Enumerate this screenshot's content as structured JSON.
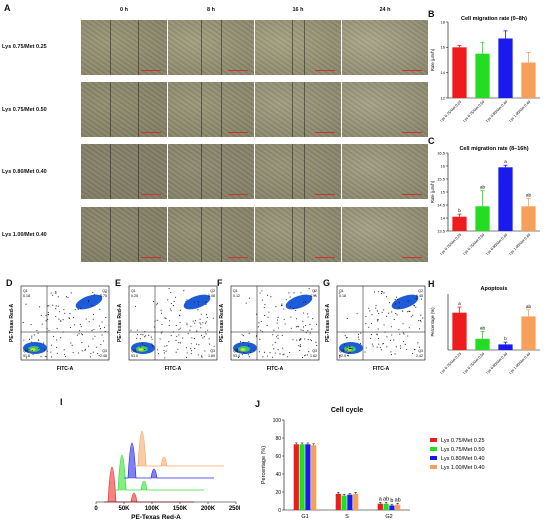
{
  "panels": {
    "A": {
      "letter": "A",
      "columns": [
        "0 h",
        "8 h",
        "16 h",
        "24 h"
      ],
      "rows": [
        "Lys 0.75/Met 0.25",
        "Lys 0.75/Met 0.50",
        "Lys 0.80/Met 0.40",
        "Lys 1.00/Met 0.40"
      ]
    },
    "B": {
      "letter": "B"
    },
    "C": {
      "letter": "C"
    },
    "D": {
      "letter": "D"
    },
    "E": {
      "letter": "E"
    },
    "F": {
      "letter": "F"
    },
    "G": {
      "letter": "G"
    },
    "H": {
      "letter": "H"
    },
    "I": {
      "letter": "I"
    },
    "J": {
      "letter": "J"
    }
  },
  "colors": {
    "red": "#ee1c1c",
    "green": "#22dd22",
    "blue": "#1a1aee",
    "orange": "#f8a05a",
    "flow_blue": "#1e5bd8",
    "flow_green": "#35c96a"
  },
  "chart_data": [
    {
      "id": "B",
      "type": "bar",
      "title": "Cell migration rate (0–8h)",
      "ylabel": "Rate (µm/h)",
      "categories": [
        "Lys 0.75/Met 0.25",
        "Lys 0.75/Met 0.50",
        "Lys 0.80/Met 0.40",
        "Lys 1.00/Met 0.40"
      ],
      "values": [
        16.0,
        15.5,
        16.7,
        14.8
      ],
      "errors": [
        0.15,
        0.9,
        0.6,
        0.8
      ],
      "ylim": [
        12,
        18
      ],
      "yticks": [
        12,
        14,
        16,
        18
      ],
      "colors": [
        "#ee1c1c",
        "#22dd22",
        "#1a1aee",
        "#f8a05a"
      ],
      "letters": [
        "",
        "",
        "",
        ""
      ]
    },
    {
      "id": "C",
      "type": "bar",
      "title": "Cell migration rate (8–16h)",
      "ylabel": "Rate (µm/h)",
      "categories": [
        "Lys 0.75/Met 0.25",
        "Lys 0.75/Met 0.50",
        "Lys 0.80/Met 0.40",
        "Lys 1.00/Met 0.40"
      ],
      "values": [
        14.05,
        14.45,
        15.95,
        14.45
      ],
      "errors": [
        0.1,
        0.6,
        0.08,
        0.3
      ],
      "ylim": [
        13.5,
        16.5
      ],
      "yticks": [
        13.5,
        14.0,
        14.5,
        15.0,
        15.5,
        16.0,
        16.5
      ],
      "colors": [
        "#ee1c1c",
        "#22dd22",
        "#1a1aee",
        "#f8a05a"
      ],
      "letters": [
        "b",
        "ab",
        "a",
        "ab"
      ]
    },
    {
      "id": "D",
      "type": "scatter",
      "xlabel": "FITC-A",
      "ylabel": "PE-Texas Red-A",
      "quadrants": {
        "Q1": "0.18",
        "Q2": "5.75",
        "Q3": "2.46",
        "Q4": "91.6"
      }
    },
    {
      "id": "E",
      "type": "scatter",
      "xlabel": "FITC-A",
      "ylabel": "PE-Texas Red-A",
      "quadrants": {
        "Q1": "0.25",
        "Q2": "5.08",
        "Q3": "1.69",
        "Q4": "93.0"
      }
    },
    {
      "id": "F",
      "type": "scatter",
      "xlabel": "FITC-A",
      "ylabel": "PE-Texas Red-A",
      "quadrants": {
        "Q1": "0.12",
        "Q2": "4.91",
        "Q3": "1.62",
        "Q4": "93.4"
      }
    },
    {
      "id": "G",
      "type": "scatter",
      "xlabel": "FITC-A",
      "ylabel": "PE-Texas Red-A",
      "quadrants": {
        "Q1": "0.18",
        "Q2": "6.40",
        "Q3": "2.42",
        "Q4": "92.0"
      }
    },
    {
      "id": "H",
      "type": "bar",
      "title": "Apoptosis",
      "ylabel": "Percentage (%)",
      "categories": [
        "Lys 0.75/Met 0.25",
        "Lys 0.75/Met 0.50",
        "Lys 0.80/Met 0.40",
        "Lys 1.00/Met 0.40"
      ],
      "values": [
        8.0,
        6.6,
        6.3,
        7.8
      ],
      "errors": [
        0.3,
        0.4,
        0.12,
        0.35
      ],
      "ylim": [
        6,
        9
      ],
      "yticks": [],
      "colors": [
        "#ee1c1c",
        "#22dd22",
        "#1a1aee",
        "#f8a05a"
      ],
      "letters": [
        "a",
        "ab",
        "b",
        "ab"
      ]
    },
    {
      "id": "I",
      "type": "area",
      "xlabel": "PE-Texas Red-A",
      "xticks": [
        "0",
        "50K",
        "100K",
        "150K",
        "200K",
        "250K"
      ],
      "series_colors": [
        "#ee1c1c",
        "#22dd22",
        "#1a1aee",
        "#f8a05a"
      ]
    },
    {
      "id": "J",
      "type": "bar",
      "title": "Cell cycle",
      "ylabel": "Percentage (%)",
      "categories": [
        "G1",
        "S",
        "G2"
      ],
      "ylim": [
        0,
        100
      ],
      "yticks": [
        0,
        20,
        40,
        60,
        80,
        100
      ],
      "series": [
        {
          "name": "Lys 0.75/Met 0.25",
          "color": "#ee1c1c",
          "values": [
            73,
            18,
            7
          ],
          "letters": [
            "",
            "",
            "a"
          ]
        },
        {
          "name": "Lys 0.75/Met 0.50",
          "color": "#22dd22",
          "values": [
            73,
            16,
            7
          ],
          "letters": [
            "",
            "",
            "ab"
          ]
        },
        {
          "name": "Lys 0.80/Met 0.40",
          "color": "#1a1aee",
          "values": [
            73,
            17,
            5
          ],
          "letters": [
            "",
            "",
            "b"
          ]
        },
        {
          "name": "Lys 1.00/Met 0.40",
          "color": "#f8a05a",
          "values": [
            72,
            18,
            6
          ],
          "letters": [
            "",
            "",
            "ab"
          ]
        }
      ]
    }
  ]
}
